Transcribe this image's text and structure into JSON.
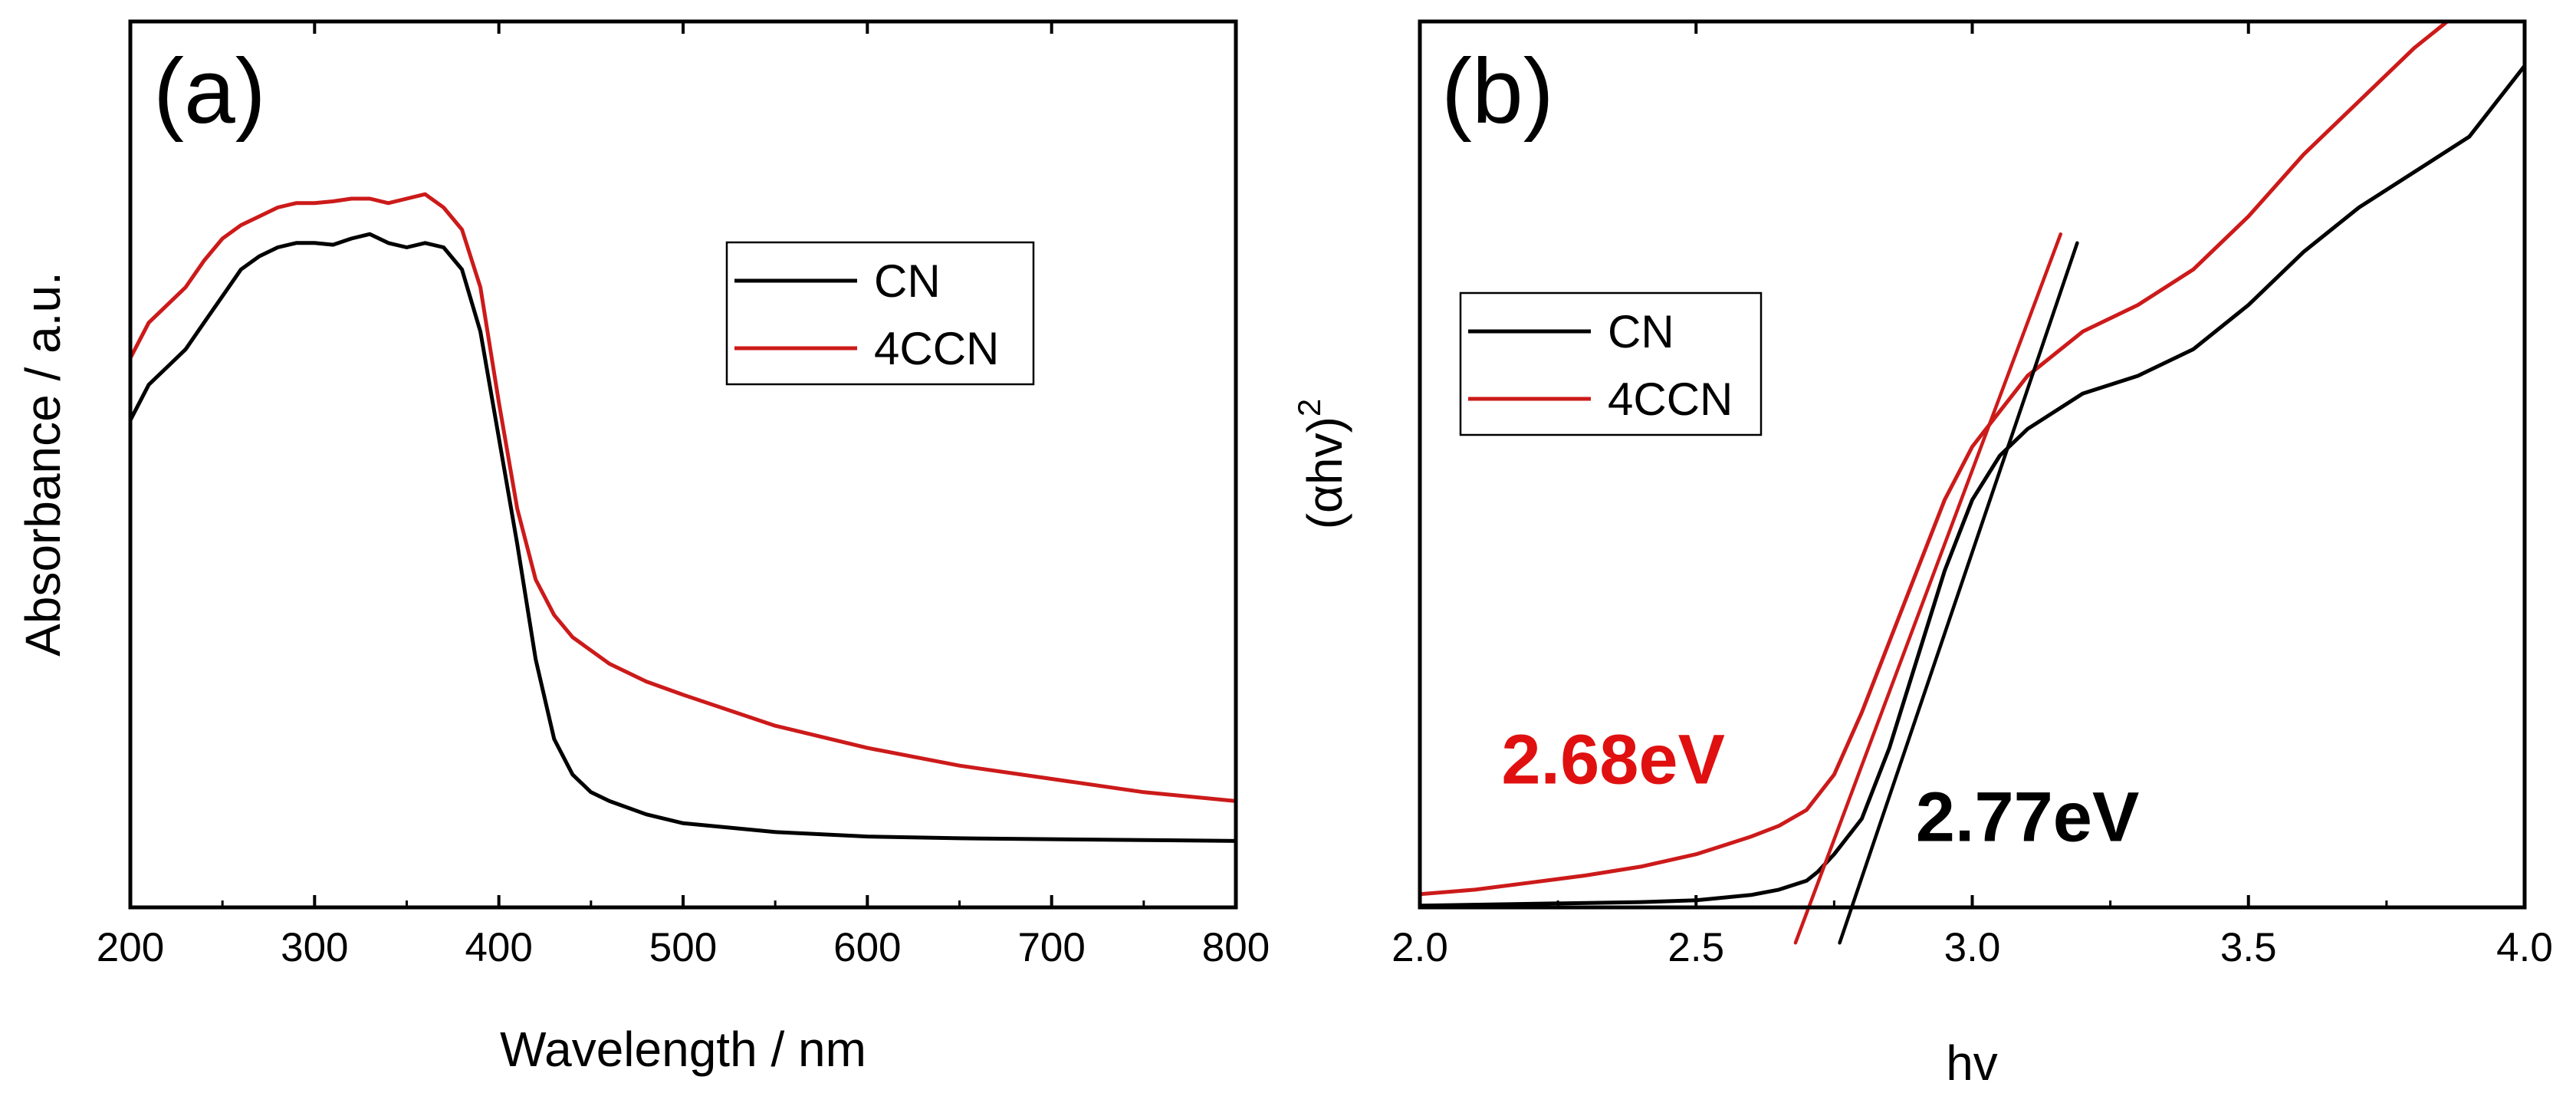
{
  "chart_data": [
    {
      "type": "line",
      "panel_label": "(a)",
      "xlabel": "Wavelength / nm",
      "ylabel": "Absorbance / a.u.",
      "xlim": [
        200,
        800
      ],
      "ylim": [
        0,
        1.0
      ],
      "x_ticks": [
        200,
        300,
        400,
        500,
        600,
        700,
        800
      ],
      "y_ticks_shown": false,
      "grid": false,
      "legend_position": "upper-right",
      "series": [
        {
          "name": "CN",
          "color": "#000000",
          "x": [
            200,
            210,
            220,
            230,
            240,
            250,
            260,
            270,
            280,
            290,
            300,
            310,
            320,
            330,
            340,
            350,
            360,
            370,
            380,
            390,
            400,
            410,
            420,
            430,
            440,
            450,
            460,
            480,
            500,
            550,
            600,
            650,
            700,
            750,
            800
          ],
          "y": [
            0.55,
            0.59,
            0.61,
            0.63,
            0.66,
            0.69,
            0.72,
            0.735,
            0.745,
            0.75,
            0.75,
            0.748,
            0.755,
            0.76,
            0.75,
            0.745,
            0.75,
            0.745,
            0.72,
            0.65,
            0.53,
            0.41,
            0.28,
            0.19,
            0.15,
            0.13,
            0.12,
            0.105,
            0.095,
            0.085,
            0.08,
            0.078,
            0.077,
            0.076,
            0.075
          ]
        },
        {
          "name": "4CCN",
          "color": "#cc1a1a",
          "x": [
            200,
            210,
            220,
            230,
            240,
            250,
            260,
            270,
            280,
            290,
            300,
            310,
            320,
            330,
            340,
            350,
            360,
            370,
            380,
            390,
            400,
            410,
            420,
            430,
            440,
            450,
            460,
            480,
            500,
            550,
            600,
            650,
            700,
            750,
            800
          ],
          "y": [
            0.62,
            0.66,
            0.68,
            0.7,
            0.73,
            0.755,
            0.77,
            0.78,
            0.79,
            0.795,
            0.795,
            0.797,
            0.8,
            0.8,
            0.795,
            0.8,
            0.805,
            0.79,
            0.765,
            0.7,
            0.57,
            0.45,
            0.37,
            0.33,
            0.305,
            0.29,
            0.275,
            0.255,
            0.24,
            0.205,
            0.18,
            0.16,
            0.145,
            0.13,
            0.12
          ]
        }
      ]
    },
    {
      "type": "line",
      "panel_label": "(b)",
      "xlabel": "hv",
      "ylabel": "(αhv)",
      "ylabel_superscript": "2",
      "xlim": [
        2.0,
        4.0
      ],
      "ylim": [
        0,
        1.0
      ],
      "x_ticks": [
        2.0,
        2.5,
        3.0,
        3.5,
        4.0
      ],
      "x_tick_labels": [
        "2.0",
        "2.5",
        "3.0",
        "3.5",
        "4.0"
      ],
      "y_ticks_shown": false,
      "grid": false,
      "legend_position": "upper-left",
      "series": [
        {
          "name": "CN",
          "color": "#000000",
          "x": [
            2.0,
            2.2,
            2.4,
            2.5,
            2.6,
            2.65,
            2.7,
            2.72,
            2.75,
            2.8,
            2.85,
            2.9,
            2.95,
            3.0,
            3.05,
            3.1,
            3.2,
            3.3,
            3.4,
            3.5,
            3.6,
            3.7,
            3.8,
            3.9,
            4.0
          ],
          "y": [
            0.002,
            0.004,
            0.006,
            0.008,
            0.014,
            0.02,
            0.03,
            0.04,
            0.06,
            0.1,
            0.18,
            0.28,
            0.38,
            0.46,
            0.51,
            0.54,
            0.58,
            0.6,
            0.63,
            0.68,
            0.74,
            0.79,
            0.83,
            0.87,
            0.95
          ]
        },
        {
          "name": "4CCN",
          "color": "#cc1a1a",
          "x": [
            2.0,
            2.1,
            2.2,
            2.3,
            2.4,
            2.5,
            2.55,
            2.6,
            2.65,
            2.7,
            2.75,
            2.8,
            2.85,
            2.9,
            2.95,
            3.0,
            3.05,
            3.1,
            3.2,
            3.3,
            3.4,
            3.5,
            3.6,
            3.7,
            3.8,
            3.86
          ],
          "y": [
            0.015,
            0.02,
            0.028,
            0.036,
            0.046,
            0.06,
            0.07,
            0.08,
            0.092,
            0.11,
            0.15,
            0.22,
            0.3,
            0.38,
            0.46,
            0.52,
            0.56,
            0.6,
            0.65,
            0.68,
            0.72,
            0.78,
            0.85,
            0.91,
            0.97,
            1.0
          ]
        }
      ],
      "tangent_lines": [
        {
          "color": "#000000",
          "x": [
            2.76,
            3.19
          ],
          "y": [
            -0.04,
            0.75
          ]
        },
        {
          "color": "#cc1a1a",
          "x": [
            2.68,
            3.16
          ],
          "y": [
            -0.04,
            0.76
          ]
        }
      ],
      "annotations": [
        {
          "text": "2.68eV",
          "color": "#e01010",
          "x": 2.35,
          "y": 0.14
        },
        {
          "text": "2.77eV",
          "color": "#000000",
          "x": 3.1,
          "y": 0.075
        }
      ]
    }
  ]
}
